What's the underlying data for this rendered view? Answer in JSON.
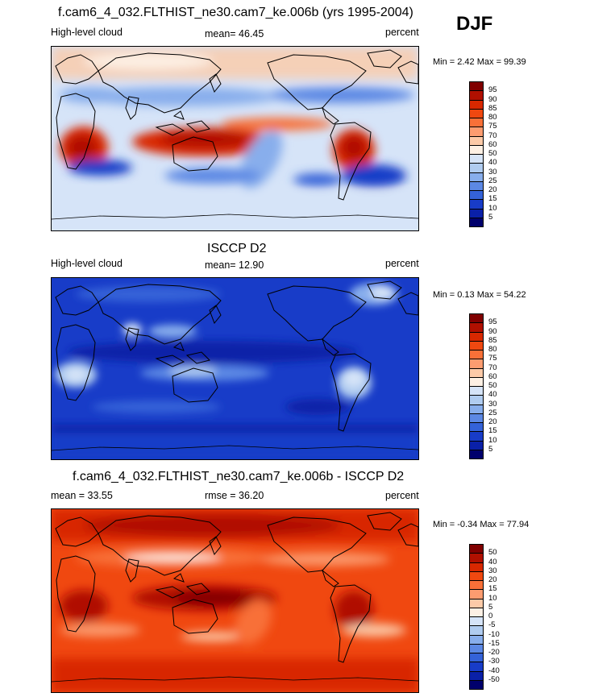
{
  "season": "DJF",
  "panels": [
    {
      "title": "f.cam6_4_032.FLTHIST_ne30.cam7_ke.006b (yrs 1995-2004)",
      "left_label": "High-level cloud",
      "center_label": "mean=  46.45",
      "right_label": "percent",
      "minmax": "Min =   2.42 Max =  99.39",
      "colorbar": {
        "ticks": [
          "95",
          "90",
          "85",
          "80",
          "75",
          "70",
          "60",
          "50",
          "40",
          "30",
          "25",
          "20",
          "15",
          "10",
          "5"
        ],
        "colors": [
          "#800000",
          "#b01000",
          "#d82800",
          "#f04810",
          "#f87038",
          "#fc9c70",
          "#fccaa8",
          "#fdf0e4",
          "#d6e4f8",
          "#b0ccf0",
          "#88aeec",
          "#5c88e4",
          "#3462d8",
          "#183cc8",
          "#0a20a8",
          "#00006c"
        ]
      }
    },
    {
      "title": "ISCCP D2",
      "left_label": "High-level cloud",
      "center_label": "mean=  12.90",
      "right_label": "percent",
      "minmax": "Min =   0.13 Max =  54.22",
      "colorbar": {
        "ticks": [
          "95",
          "90",
          "85",
          "80",
          "75",
          "70",
          "60",
          "50",
          "40",
          "30",
          "25",
          "20",
          "15",
          "10",
          "5"
        ],
        "colors": [
          "#800000",
          "#b01000",
          "#d82800",
          "#f04810",
          "#f87038",
          "#fc9c70",
          "#fccaa8",
          "#fdf0e4",
          "#d6e4f8",
          "#b0ccf0",
          "#88aeec",
          "#5c88e4",
          "#3462d8",
          "#183cc8",
          "#0a20a8",
          "#00006c"
        ]
      }
    },
    {
      "title": "f.cam6_4_032.FLTHIST_ne30.cam7_ke.006b - ISCCP D2",
      "left_label": "mean =  33.55",
      "center_label": "rmse =  36.20",
      "right_label": "percent",
      "minmax": "Min =  -0.34 Max =  77.94",
      "colorbar": {
        "ticks": [
          "50",
          "40",
          "30",
          "20",
          "15",
          "10",
          "5",
          "0",
          "-5",
          "-10",
          "-15",
          "-20",
          "-30",
          "-40",
          "-50"
        ],
        "colors": [
          "#800000",
          "#b01000",
          "#d82800",
          "#f04810",
          "#f87038",
          "#fc9c70",
          "#fccaa8",
          "#fdf0e4",
          "#d6e4f8",
          "#b0ccf0",
          "#88aeec",
          "#5c88e4",
          "#3462d8",
          "#183cc8",
          "#0a20a8",
          "#00006c"
        ]
      }
    }
  ]
}
